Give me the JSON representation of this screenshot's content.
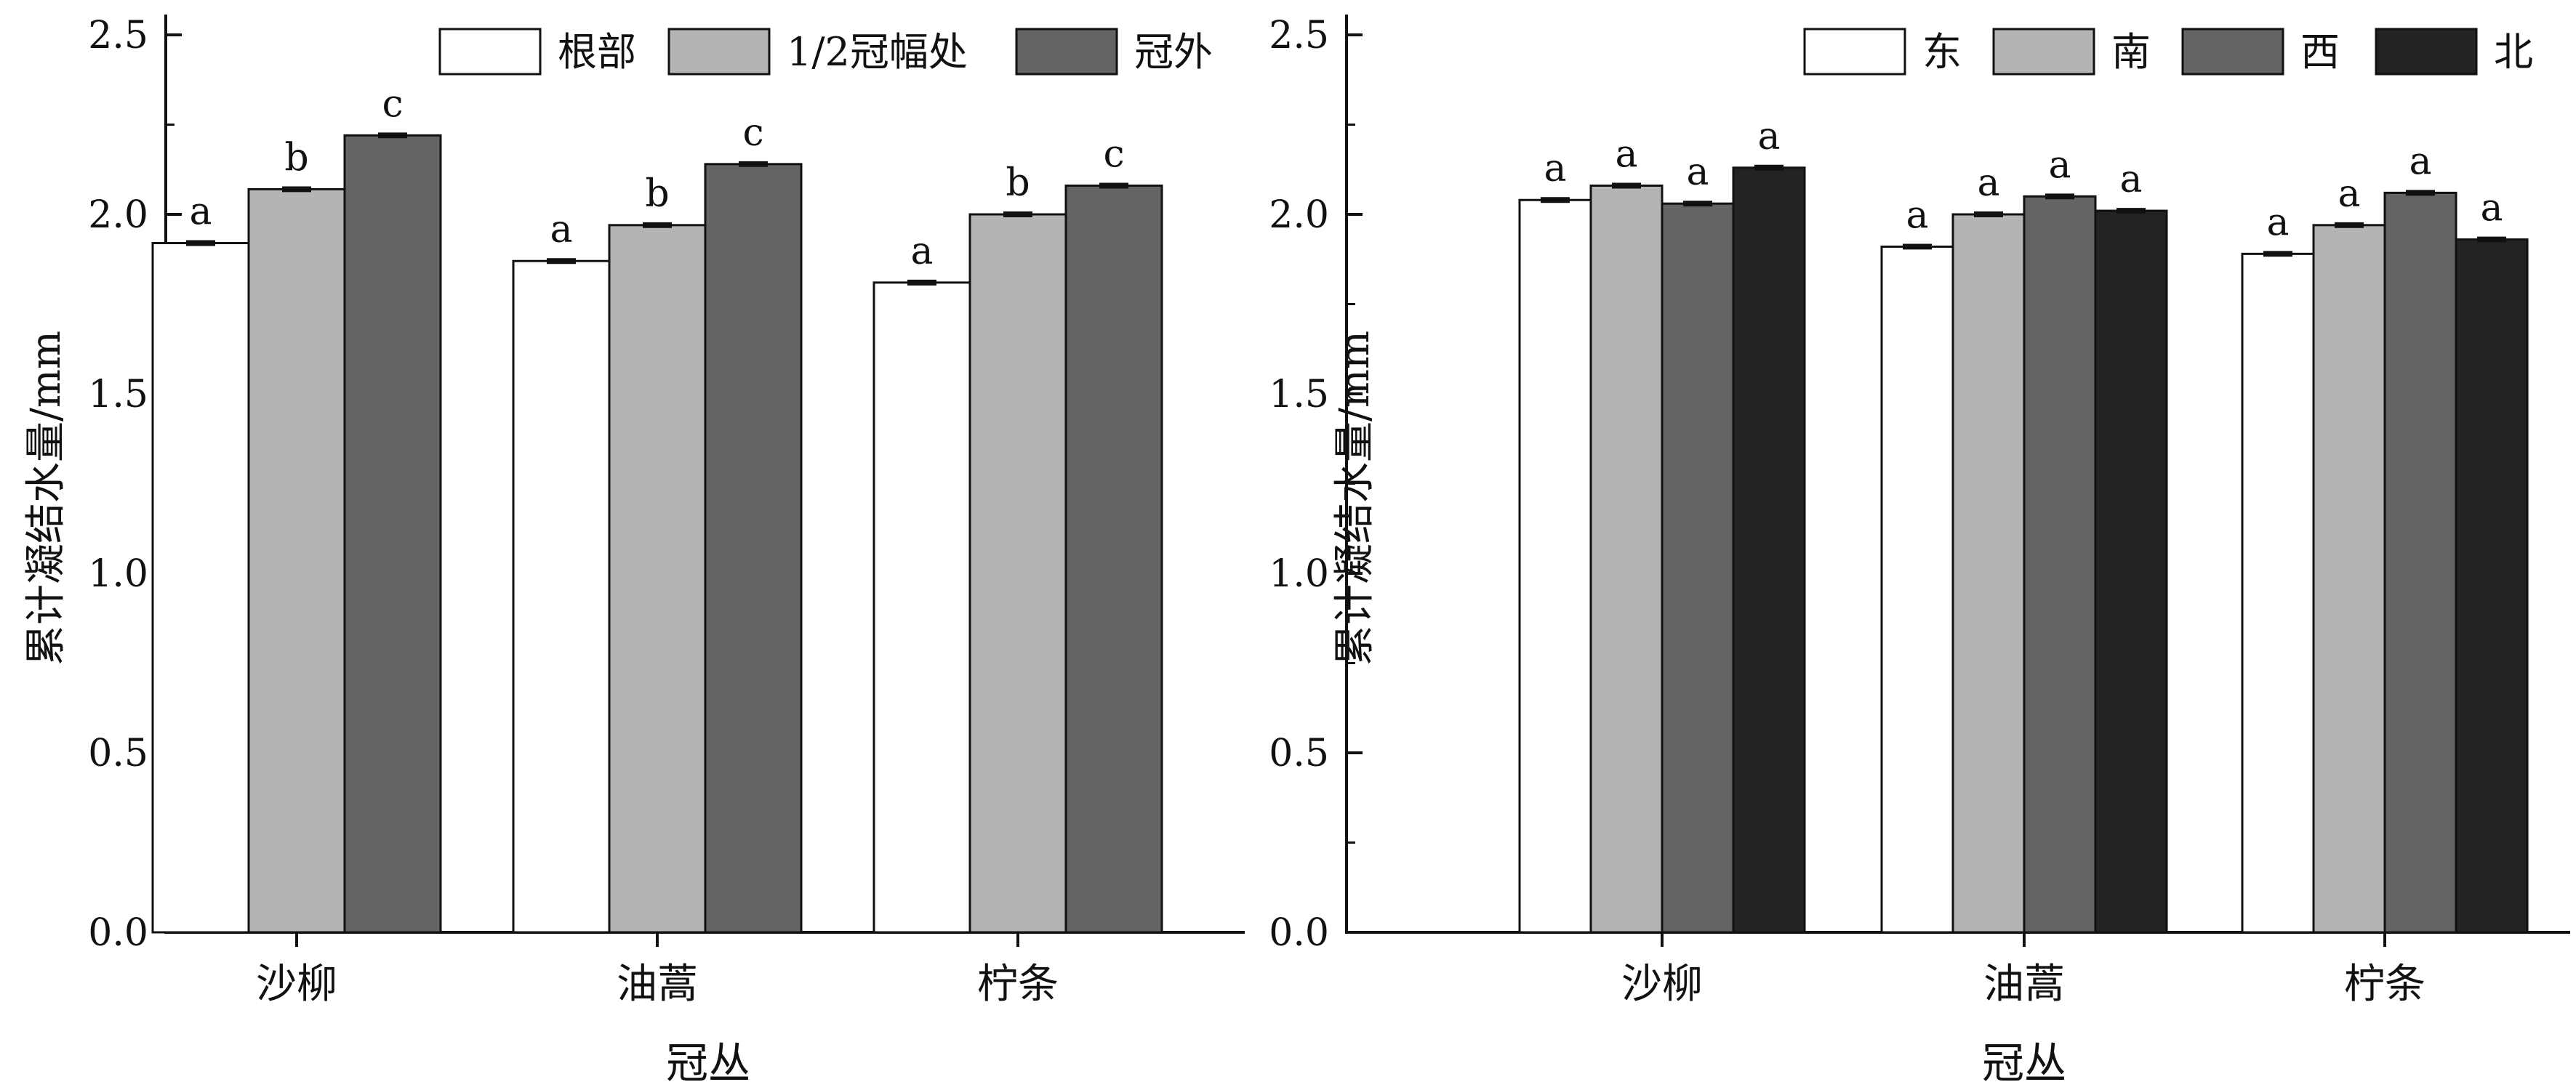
{
  "chart_data": [
    {
      "type": "bar",
      "xlabel": "冠丛",
      "ylabel": "累计凝结水量/mm",
      "ylim": [
        0,
        2.5
      ],
      "yticks": [
        0.0,
        0.5,
        1.0,
        1.5,
        2.0,
        2.5
      ],
      "ytick_labels": [
        "0.0",
        "0.5",
        "1.0",
        "1.5",
        "2.0",
        "2.5"
      ],
      "categories": [
        "沙柳",
        "油蒿",
        "柠条"
      ],
      "legend_position": "top-right",
      "grid": false,
      "series": [
        {
          "name": "根部",
          "color": "#ffffff",
          "values": [
            1.92,
            1.87,
            1.81
          ],
          "errors": [
            0.005,
            0.005,
            0.005
          ],
          "labels": [
            "a",
            "a",
            "a"
          ]
        },
        {
          "name": "1/2冠幅处",
          "color": "#b4b4b4",
          "values": [
            2.07,
            1.97,
            2.0
          ],
          "errors": [
            0.005,
            0.005,
            0.005
          ],
          "labels": [
            "b",
            "b",
            "b"
          ]
        },
        {
          "name": "冠外",
          "color": "#646464",
          "values": [
            2.22,
            2.14,
            2.08
          ],
          "errors": [
            0.005,
            0.005,
            0.005
          ],
          "labels": [
            "c",
            "c",
            "c"
          ]
        }
      ]
    },
    {
      "type": "bar",
      "xlabel": "冠丛",
      "ylabel": "累计凝结水量/mm",
      "ylim": [
        0,
        2.5
      ],
      "yticks": [
        0.0,
        0.5,
        1.0,
        1.5,
        2.0,
        2.5
      ],
      "ytick_labels": [
        "0.0",
        "0.5",
        "1.0",
        "1.5",
        "2.0",
        "2.5"
      ],
      "categories": [
        "沙柳",
        "油蒿",
        "柠条"
      ],
      "legend_position": "top-right",
      "grid": false,
      "series": [
        {
          "name": "东",
          "color": "#ffffff",
          "values": [
            2.04,
            1.91,
            1.89
          ],
          "errors": [
            0.005,
            0.005,
            0.005
          ],
          "labels": [
            "a",
            "a",
            "a"
          ]
        },
        {
          "name": "南",
          "color": "#b4b4b4",
          "values": [
            2.08,
            2.0,
            1.97
          ],
          "errors": [
            0.005,
            0.005,
            0.005
          ],
          "labels": [
            "a",
            "a",
            "a"
          ]
        },
        {
          "name": "西",
          "color": "#646464",
          "values": [
            2.03,
            2.05,
            2.06
          ],
          "errors": [
            0.005,
            0.005,
            0.005
          ],
          "labels": [
            "a",
            "a",
            "a"
          ]
        },
        {
          "name": "北",
          "color": "#232323",
          "values": [
            2.13,
            2.01,
            1.93
          ],
          "errors": [
            0.005,
            0.005,
            0.005
          ],
          "labels": [
            "a",
            "a",
            "a"
          ]
        }
      ]
    }
  ]
}
